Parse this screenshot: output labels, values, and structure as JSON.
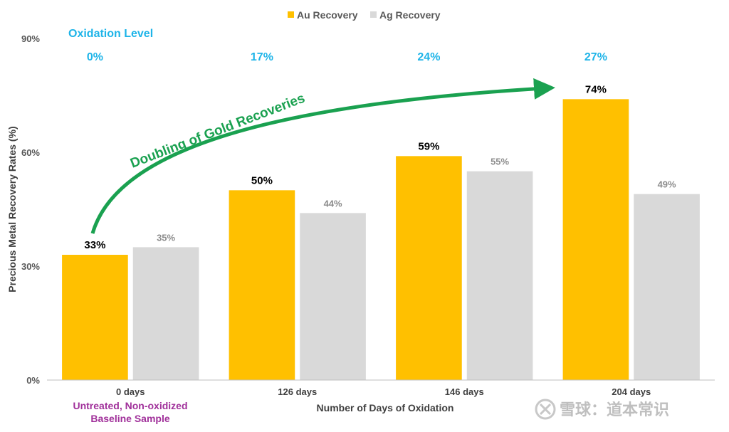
{
  "chart_data": {
    "type": "bar",
    "categories": [
      "0 days",
      "126 days",
      "146 days",
      "204 days"
    ],
    "series": [
      {
        "name": "Au Recovery",
        "values": [
          33,
          50,
          59,
          74
        ],
        "labels": [
          "33%",
          "50%",
          "59%",
          "74%"
        ],
        "color": "#ffc000"
      },
      {
        "name": "Ag Recovery",
        "values": [
          35,
          44,
          55,
          49
        ],
        "labels": [
          "35%",
          "44%",
          "55%",
          "49%"
        ],
        "color": "#d9d9d9"
      }
    ],
    "ylim": [
      0,
      90
    ],
    "yticks": [
      0,
      30,
      60,
      90
    ],
    "ytick_labels": [
      "0%",
      "30%",
      "60%",
      "90%"
    ],
    "xlabel": "Number of Days of Oxidation",
    "ylabel": "Precious Metal Recovery Rates (%)",
    "legend_position": "top-center",
    "grid": false,
    "oxidation": {
      "title": "Oxidation Level",
      "values": [
        "0%",
        "17%",
        "24%",
        "27%"
      ],
      "color": "#1eb4e8"
    },
    "annotation": {
      "text": "Doubling of Gold Recoveries",
      "color": "#1aa150"
    },
    "baseline_note": {
      "lines": [
        "Untreated, Non-oxidized",
        "Baseline Sample"
      ],
      "color": "#a0309a"
    }
  },
  "watermark": "雪球：道本常识"
}
